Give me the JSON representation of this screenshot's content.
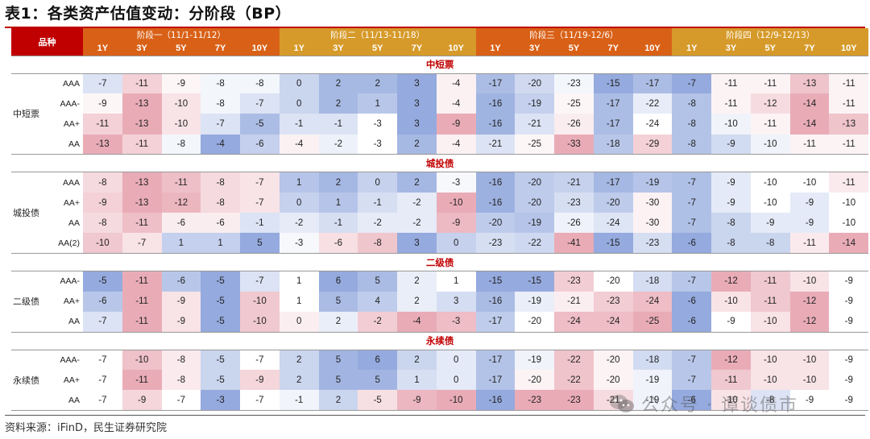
{
  "title": "表1：各类资产估值变动：分阶段（BP）",
  "header": {
    "corner": "品种",
    "stages": [
      "阶段一（11/1-11/12）",
      "阶段二（11/13-11/18）",
      "阶段三（11/19-12/6）",
      "阶段四（12/9-12/13）"
    ],
    "tenors": [
      "1Y",
      "3Y",
      "5Y",
      "7Y",
      "10Y"
    ]
  },
  "sections": [
    {
      "title": "中短票",
      "category": "中短票",
      "rows": [
        {
          "grade": "AAA",
          "values": [
            -7,
            -11,
            -9,
            -8,
            -8,
            0,
            2,
            2,
            3,
            -4,
            -17,
            -20,
            -23,
            -15,
            -17,
            -7,
            -11,
            -11,
            -13,
            -11
          ]
        },
        {
          "grade": "AAA-",
          "values": [
            -9,
            -13,
            -10,
            -8,
            -7,
            0,
            2,
            1,
            3,
            -4,
            -16,
            -19,
            -25,
            -17,
            -22,
            -8,
            -11,
            -12,
            -14,
            -11
          ]
        },
        {
          "grade": "AA+",
          "values": [
            -11,
            -13,
            -10,
            -7,
            -5,
            -1,
            -1,
            -3,
            3,
            -9,
            -16,
            -21,
            -26,
            -17,
            -24,
            -8,
            -10,
            -11,
            -14,
            -13
          ]
        },
        {
          "grade": "AA",
          "values": [
            -13,
            -11,
            -8,
            -4,
            -6,
            -4,
            -2,
            -3,
            2,
            -4,
            -21,
            -25,
            -33,
            -18,
            -29,
            -8,
            -9,
            -10,
            -11,
            -11
          ]
        }
      ]
    },
    {
      "title": "城投债",
      "category": "城投债",
      "rows": [
        {
          "grade": "AAA",
          "values": [
            -8,
            -13,
            -11,
            -8,
            -7,
            1,
            2,
            0,
            2,
            -3,
            -16,
            -20,
            -21,
            -17,
            -19,
            -7,
            -9,
            -10,
            -10,
            -11
          ]
        },
        {
          "grade": "AA+",
          "values": [
            -9,
            -13,
            -12,
            -8,
            -7,
            0,
            1,
            -1,
            -2,
            -10,
            -16,
            -20,
            -23,
            -20,
            -30,
            -7,
            -9,
            -10,
            -9,
            -10
          ]
        },
        {
          "grade": "AA",
          "values": [
            -8,
            -11,
            -6,
            -6,
            -1,
            -2,
            -1,
            -2,
            -2,
            -9,
            -20,
            -19,
            -26,
            -24,
            -30,
            -7,
            -8,
            -9,
            -9,
            -10
          ]
        },
        {
          "grade": "AA(2)",
          "values": [
            -10,
            -7,
            1,
            1,
            5,
            -3,
            -6,
            -8,
            3,
            0,
            -23,
            -22,
            -41,
            -15,
            -23,
            -6,
            -8,
            -8,
            -11,
            -14
          ]
        }
      ]
    },
    {
      "title": "二级债",
      "category": "二级债",
      "rows": [
        {
          "grade": "AAA-",
          "values": [
            -5,
            -11,
            -6,
            -5,
            -7,
            1,
            6,
            5,
            2,
            1,
            -15,
            -15,
            -23,
            -20,
            -18,
            -7,
            -12,
            -11,
            -10,
            -9
          ]
        },
        {
          "grade": "AA+",
          "values": [
            -6,
            -11,
            -9,
            -5,
            -10,
            1,
            5,
            4,
            2,
            3,
            -16,
            -19,
            -21,
            -23,
            -24,
            -6,
            -10,
            -11,
            -12,
            -9
          ]
        },
        {
          "grade": "AA",
          "values": [
            -7,
            -11,
            -9,
            -5,
            -10,
            0,
            2,
            -2,
            -4,
            -3,
            -17,
            -20,
            -24,
            -24,
            -25,
            -6,
            -9,
            -10,
            -12,
            -9
          ]
        }
      ]
    },
    {
      "title": "永续债",
      "category": "永续债",
      "rows": [
        {
          "grade": "AAA-",
          "values": [
            -7,
            -10,
            -8,
            -5,
            -7,
            2,
            5,
            6,
            2,
            0,
            -17,
            -19,
            -22,
            -20,
            -18,
            -7,
            -12,
            -10,
            -10,
            -9
          ]
        },
        {
          "grade": "AA+",
          "values": [
            -7,
            -11,
            -8,
            -5,
            -9,
            2,
            5,
            5,
            1,
            0,
            -17,
            -20,
            -22,
            -20,
            -19,
            -7,
            -11,
            -10,
            -10,
            -9
          ]
        },
        {
          "grade": "AA",
          "values": [
            -7,
            -9,
            -7,
            -3,
            -7,
            -1,
            2,
            -5,
            -9,
            -10,
            -16,
            -23,
            -23,
            -21,
            -19,
            -6,
            -10,
            -8,
            -9,
            -9
          ]
        }
      ]
    }
  ],
  "colors": {
    "red": "#c00000",
    "orange": "#d96117",
    "gold": "#d69a2a",
    "low": "#e8a8b3",
    "high": "#8fa6dc"
  },
  "source": "资料来源：iFinD，民生证券研究院",
  "watermark": "公众号 · 谭谈债市"
}
